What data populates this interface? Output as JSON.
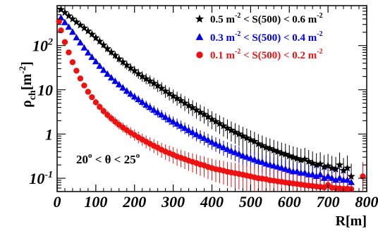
{
  "chart_data": {
    "type": "scatter",
    "title": "",
    "xlabel": "R[m]",
    "ylabel": "ρch[m-2]",
    "ylabel_main": "ρ",
    "ylabel_sub": "ch",
    "ylabel_units": "[m",
    "ylabel_units_sup": "-2",
    "ylabel_units_close": "]",
    "xlim": [
      0,
      800
    ],
    "ylim": [
      0.05,
      800
    ],
    "yscale": "log",
    "x_ticks": [
      0,
      100,
      200,
      300,
      400,
      500,
      600,
      700,
      800
    ],
    "x_tick_labels": [
      "0",
      "100",
      "200",
      "300",
      "400",
      "500",
      "600",
      "700",
      "800"
    ],
    "y_ticks": [
      0.1,
      1,
      10,
      100
    ],
    "y_tick_labels": [
      {
        "base": "10",
        "sup": "-1"
      },
      {
        "base": "1",
        "sup": ""
      },
      {
        "base": "10",
        "sup": ""
      },
      {
        "base": "10",
        "sup": "2"
      }
    ],
    "grid": false,
    "legend_position": "top-right",
    "annotation": {
      "text_a": "20",
      "sup_a": "o",
      "text_b": " < θ < 25",
      "sup_b": "o"
    },
    "series": [
      {
        "name": "0.5 m-2 < S(500) < 0.6 m-2",
        "legend": {
          "a": "0.5 m",
          "sup1": "-2",
          "b": " < S(500) < 0.6 m",
          "sup2": "-2"
        },
        "marker": "star",
        "color": "#000000",
        "x": [
          10,
          20,
          30,
          40,
          50,
          60,
          70,
          80,
          90,
          100,
          110,
          120,
          130,
          140,
          150,
          160,
          170,
          180,
          190,
          200,
          210,
          220,
          230,
          240,
          250,
          260,
          270,
          280,
          290,
          300,
          310,
          320,
          330,
          340,
          350,
          360,
          370,
          380,
          390,
          400,
          410,
          420,
          430,
          440,
          450,
          460,
          470,
          480,
          490,
          500,
          510,
          520,
          530,
          540,
          550,
          560,
          570,
          580,
          590,
          600,
          610,
          620,
          630,
          640,
          650,
          660,
          670,
          680,
          690,
          700,
          710,
          720,
          730,
          740,
          750,
          760
        ],
        "y": [
          650,
          560,
          470,
          400,
          340,
          290,
          250,
          213,
          180,
          150,
          125,
          103,
          85,
          71,
          60,
          50,
          42.5,
          36,
          31,
          27,
          23,
          20,
          17.7,
          15.8,
          14,
          12.3,
          10.8,
          9.3,
          8.2,
          7.2,
          6.4,
          5.7,
          5,
          4.4,
          3.95,
          3.5,
          3.1,
          2.78,
          2.45,
          2.15,
          1.92,
          1.72,
          1.53,
          1.36,
          1.22,
          1.1,
          1.0,
          0.9,
          0.82,
          0.74,
          0.68,
          0.6,
          0.55,
          0.5,
          0.47,
          0.43,
          0.4,
          0.37,
          0.35,
          0.32,
          0.3,
          0.28,
          0.26,
          0.27,
          0.24,
          0.22,
          0.2,
          0.21,
          0.18,
          0.19,
          0.17,
          0.16,
          0.2,
          0.15,
          0.17,
          0.11
        ]
      },
      {
        "name": "0.3 m-2 < S(500) < 0.4 m-2",
        "legend": {
          "a": "0.3 m",
          "sup1": "-2",
          "b": " < S(500) < 0.4 m",
          "sup2": "-2"
        },
        "marker": "triangle",
        "color": "#0000ee",
        "x": [
          10,
          20,
          30,
          40,
          50,
          60,
          70,
          80,
          90,
          100,
          110,
          120,
          130,
          140,
          150,
          160,
          170,
          180,
          190,
          200,
          210,
          220,
          230,
          240,
          250,
          260,
          270,
          280,
          290,
          300,
          310,
          320,
          330,
          340,
          350,
          360,
          370,
          380,
          390,
          400,
          410,
          420,
          430,
          440,
          450,
          460,
          470,
          480,
          490,
          500,
          510,
          520,
          530,
          540,
          550,
          560,
          570,
          580,
          590,
          600,
          610,
          620,
          630,
          640,
          650,
          660,
          670,
          680,
          690,
          700,
          710,
          720,
          730,
          740,
          750,
          760
        ],
        "y": [
          420,
          330,
          260,
          200,
          150,
          115,
          88,
          68,
          54,
          43,
          34,
          27.5,
          22.5,
          18.5,
          15.5,
          13,
          11,
          9.3,
          8,
          6.9,
          6,
          5.2,
          4.5,
          3.95,
          3.45,
          3.05,
          2.7,
          2.38,
          2.1,
          1.88,
          1.68,
          1.5,
          1.35,
          1.2,
          1.08,
          0.97,
          0.88,
          0.8,
          0.72,
          0.65,
          0.59,
          0.54,
          0.49,
          0.45,
          0.41,
          0.38,
          0.35,
          0.32,
          0.3,
          0.28,
          0.26,
          0.24,
          0.23,
          0.21,
          0.2,
          0.19,
          0.18,
          0.17,
          0.16,
          0.15,
          0.14,
          0.14,
          0.13,
          0.13,
          0.12,
          0.12,
          0.11,
          0.12,
          0.1,
          0.11,
          0.1,
          0.09,
          0.1,
          0.09,
          0.09,
          0.08
        ]
      },
      {
        "name": "0.1 m-2 < S(500) < 0.2 m-2",
        "legend": {
          "a": "0.1 m",
          "sup1": "-2",
          "b": " < S(500) < 0.2 m",
          "sup2": "-2"
        },
        "marker": "circle",
        "color": "#ee1111",
        "x": [
          5,
          10,
          20,
          30,
          40,
          50,
          60,
          70,
          80,
          90,
          100,
          110,
          120,
          130,
          140,
          150,
          160,
          170,
          180,
          190,
          200,
          210,
          220,
          230,
          240,
          250,
          260,
          270,
          280,
          290,
          300,
          310,
          320,
          330,
          340,
          350,
          360,
          370,
          380,
          390,
          400,
          410,
          420,
          430,
          440,
          450,
          460,
          470,
          480,
          490,
          500,
          510,
          520,
          530,
          540,
          550,
          560,
          570,
          580,
          590,
          600,
          610,
          620,
          630,
          640,
          650,
          660,
          670,
          680,
          690,
          700,
          710,
          720,
          730,
          740,
          750,
          760,
          790
        ],
        "y": [
          350,
          220,
          120,
          70,
          42,
          27,
          18,
          12.5,
          9,
          6.8,
          5.2,
          4.1,
          3.3,
          2.7,
          2.25,
          1.9,
          1.62,
          1.4,
          1.22,
          1.07,
          0.95,
          0.84,
          0.75,
          0.67,
          0.6,
          0.54,
          0.49,
          0.44,
          0.4,
          0.37,
          0.34,
          0.31,
          0.29,
          0.27,
          0.25,
          0.235,
          0.22,
          0.205,
          0.195,
          0.18,
          0.17,
          0.16,
          0.155,
          0.148,
          0.14,
          0.135,
          0.13,
          0.125,
          0.12,
          0.115,
          0.11,
          0.105,
          0.1,
          0.098,
          0.095,
          0.09,
          0.088,
          0.085,
          0.083,
          0.08,
          0.078,
          0.076,
          0.074,
          0.072,
          0.07,
          0.068,
          0.067,
          0.065,
          0.064,
          0.062,
          0.07,
          0.061,
          0.06,
          0.059,
          0.058,
          0.058,
          0.057,
          0.11
        ]
      }
    ]
  }
}
